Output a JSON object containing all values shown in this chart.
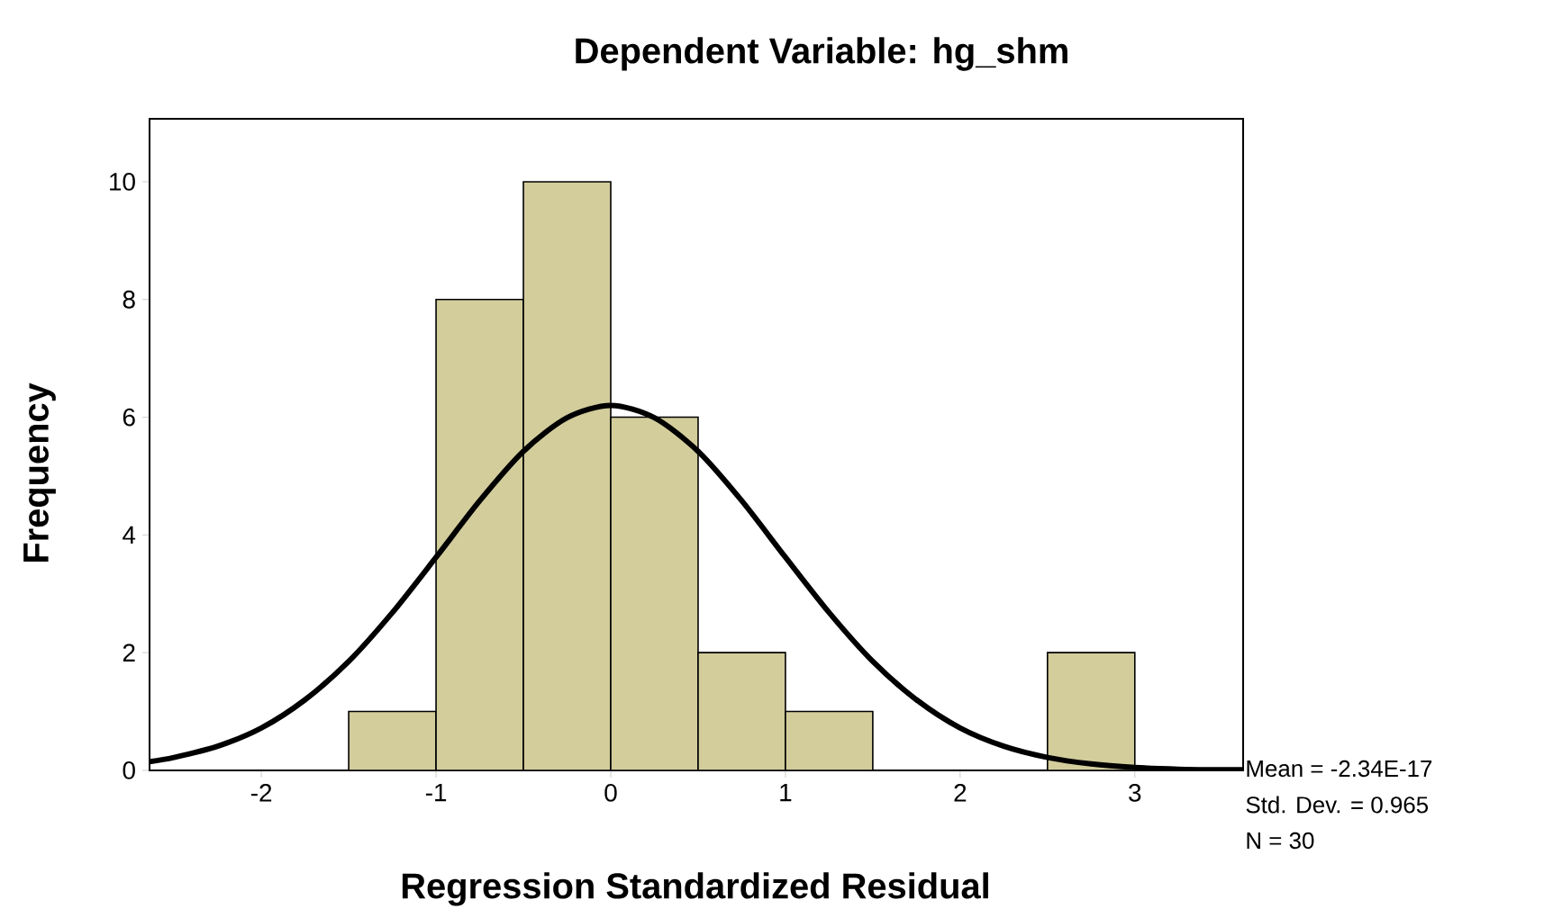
{
  "chart_data": {
    "type": "histogram",
    "title": "Dependent Variable: hg_shm",
    "xlabel": "Regression Standardized Residual",
    "ylabel": "Frequency",
    "bins": [
      -1.5,
      -1,
      -0.5,
      0,
      0.5,
      1,
      1.5,
      2,
      2.5,
      3
    ],
    "values": [
      1,
      8,
      10,
      6,
      2,
      1,
      0,
      0,
      2
    ],
    "color": "#d3cd9c",
    "series": [
      {
        "type": "line",
        "color": "#000000",
        "x": [
          -2.64,
          -2.5,
          -2.25,
          -2,
          -1.75,
          -1.5,
          -1.25,
          -1,
          -0.75,
          -0.5,
          -0.25,
          0,
          0.25,
          0.5,
          0.75,
          1,
          1.25,
          1.5,
          1.75,
          2,
          2.25,
          2.5,
          2.75,
          3,
          3.25,
          3.5,
          3.62
        ],
        "values": [
          0.15,
          0.22,
          0.41,
          0.72,
          1.2,
          1.85,
          2.68,
          3.62,
          4.58,
          5.42,
          5.99,
          6.2,
          5.99,
          5.42,
          4.58,
          3.62,
          2.68,
          1.85,
          1.2,
          0.72,
          0.41,
          0.22,
          0.11,
          0.05,
          0.02,
          0.01,
          0.01
        ]
      }
    ],
    "xlim": [
      -2.64,
      3.62
    ],
    "ylim": [
      0,
      11.07
    ],
    "xticks": [
      -2,
      -1,
      0,
      1,
      2,
      3
    ],
    "yticks": [
      0,
      2,
      4,
      6,
      8,
      10
    ],
    "grid": false,
    "annotations": [
      "Mean = -2.34E-17",
      "Std. Dev. = 0.965",
      "N = 30"
    ]
  }
}
